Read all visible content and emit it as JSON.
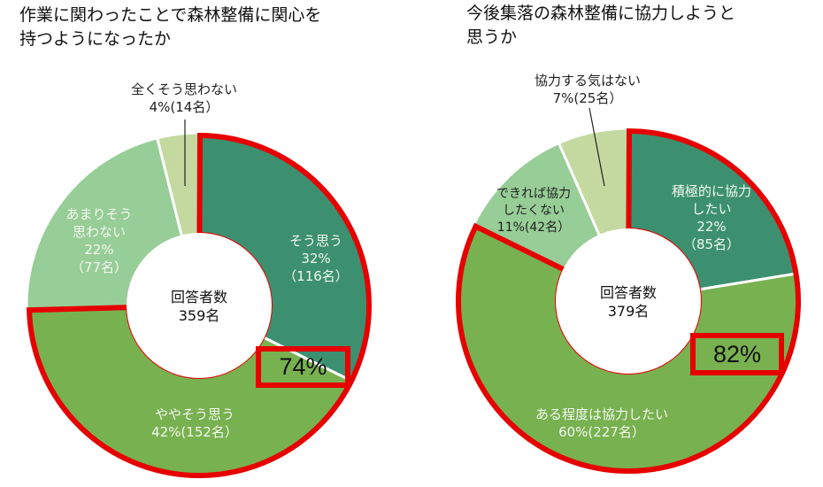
{
  "chart_data": [
    {
      "type": "pie",
      "subtype": "donut",
      "title": "作業に関わったことで森林整備に関心を\n持つようになったか",
      "center_label": "回答者数\n359名",
      "total_respondents": 359,
      "slices": [
        {
          "label": "そう思う",
          "percent": 32,
          "count": 116,
          "color": "#3c9070",
          "text": "そう思う\n32%\n（116名）"
        },
        {
          "label": "ややそう思う",
          "percent": 42,
          "count": 152,
          "color": "#78b150",
          "text": "ややそう思う\n42%(152名）"
        },
        {
          "label": "あまりそう思わない",
          "percent": 22,
          "count": 77,
          "color": "#97cd96",
          "text": "あまりそう\n思わない\n22%\n（77名）"
        },
        {
          "label": "全くそう思わない",
          "percent": 4,
          "count": 14,
          "color": "#c4d9a0",
          "text": "全くそう思わない\n4%(14名）"
        }
      ],
      "highlight": {
        "label": "74%",
        "covers": [
          "そう思う",
          "ややそう思う"
        ],
        "color": "#e60000"
      }
    },
    {
      "type": "pie",
      "subtype": "donut",
      "title": "今後集落の森林整備に協力しようと\n思うか",
      "center_label": "回答者数\n379名",
      "total_respondents": 379,
      "slices": [
        {
          "label": "積極的に協力したい",
          "percent": 22,
          "count": 85,
          "color": "#3c9070",
          "text": "積極的に協力\nしたい\n22%\n（85名）"
        },
        {
          "label": "ある程度は協力したい",
          "percent": 60,
          "count": 227,
          "color": "#78b150",
          "text": "ある程度は協力したい\n60%(227名）"
        },
        {
          "label": "できれば協力したくない",
          "percent": 11,
          "count": 42,
          "color": "#97cd96",
          "text": "できれば協力\nしたくない\n11%(42名）"
        },
        {
          "label": "協力する気はない",
          "percent": 7,
          "count": 25,
          "color": "#c4d9a0",
          "text": "協力する気はない\n7%(25名）"
        }
      ],
      "highlight": {
        "label": "82%",
        "covers": [
          "積極的に協力したい",
          "ある程度は協力したい"
        ],
        "color": "#e60000"
      }
    }
  ]
}
